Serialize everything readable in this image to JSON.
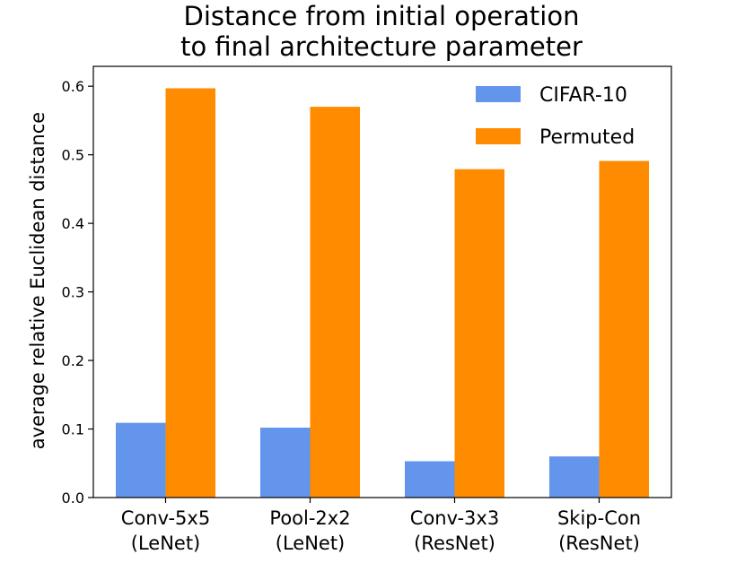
{
  "chart_data": {
    "type": "bar",
    "title": [
      "Distance from initial operation",
      "to final architecture parameter"
    ],
    "ylabel": "average relative Euclidean distance",
    "xlabel": "",
    "categories": [
      [
        "Conv-5x5",
        "(LeNet)"
      ],
      [
        "Pool-2x2",
        "(LeNet)"
      ],
      [
        "Conv-3x3",
        "(ResNet)"
      ],
      [
        "Skip-Con",
        "(ResNet)"
      ]
    ],
    "series": [
      {
        "name": "CIFAR-10",
        "color": "#6495ED",
        "values": [
          0.109,
          0.102,
          0.053,
          0.06
        ]
      },
      {
        "name": "Permuted",
        "color": "#FF8C00",
        "values": [
          0.597,
          0.57,
          0.479,
          0.491
        ]
      }
    ],
    "yticks": [
      "0.0",
      "0.1",
      "0.2",
      "0.3",
      "0.4",
      "0.5",
      "0.6"
    ],
    "ylim": [
      0,
      0.6
    ],
    "legend_position": "top-right",
    "grid": false
  }
}
